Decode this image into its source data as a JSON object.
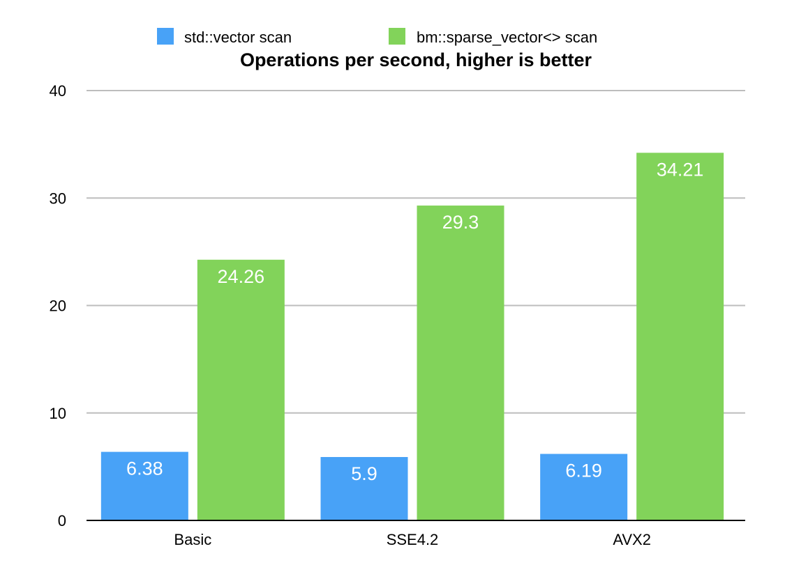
{
  "chart_data": {
    "type": "bar",
    "title": "Operations per second, higher is better",
    "categories": [
      "Basic",
      "SSE4.2",
      "AVX2"
    ],
    "series": [
      {
        "name": "std::vector scan",
        "color": "#48a2f7",
        "values": [
          6.38,
          5.9,
          6.19
        ],
        "labels": [
          "6.38",
          "5.9",
          "6.19"
        ]
      },
      {
        "name": "bm::sparse_vector<> scan",
        "color": "#82d35a",
        "values": [
          24.26,
          29.3,
          34.21
        ],
        "labels": [
          "24.26",
          "29.3",
          "34.21"
        ]
      }
    ],
    "ylim": [
      0,
      40
    ],
    "yticks": [
      0,
      10,
      20,
      30,
      40
    ],
    "ytick_labels": [
      "0",
      "10",
      "20",
      "30",
      "40"
    ],
    "xlabel": "",
    "ylabel": "",
    "grid": true,
    "legend": "top"
  }
}
